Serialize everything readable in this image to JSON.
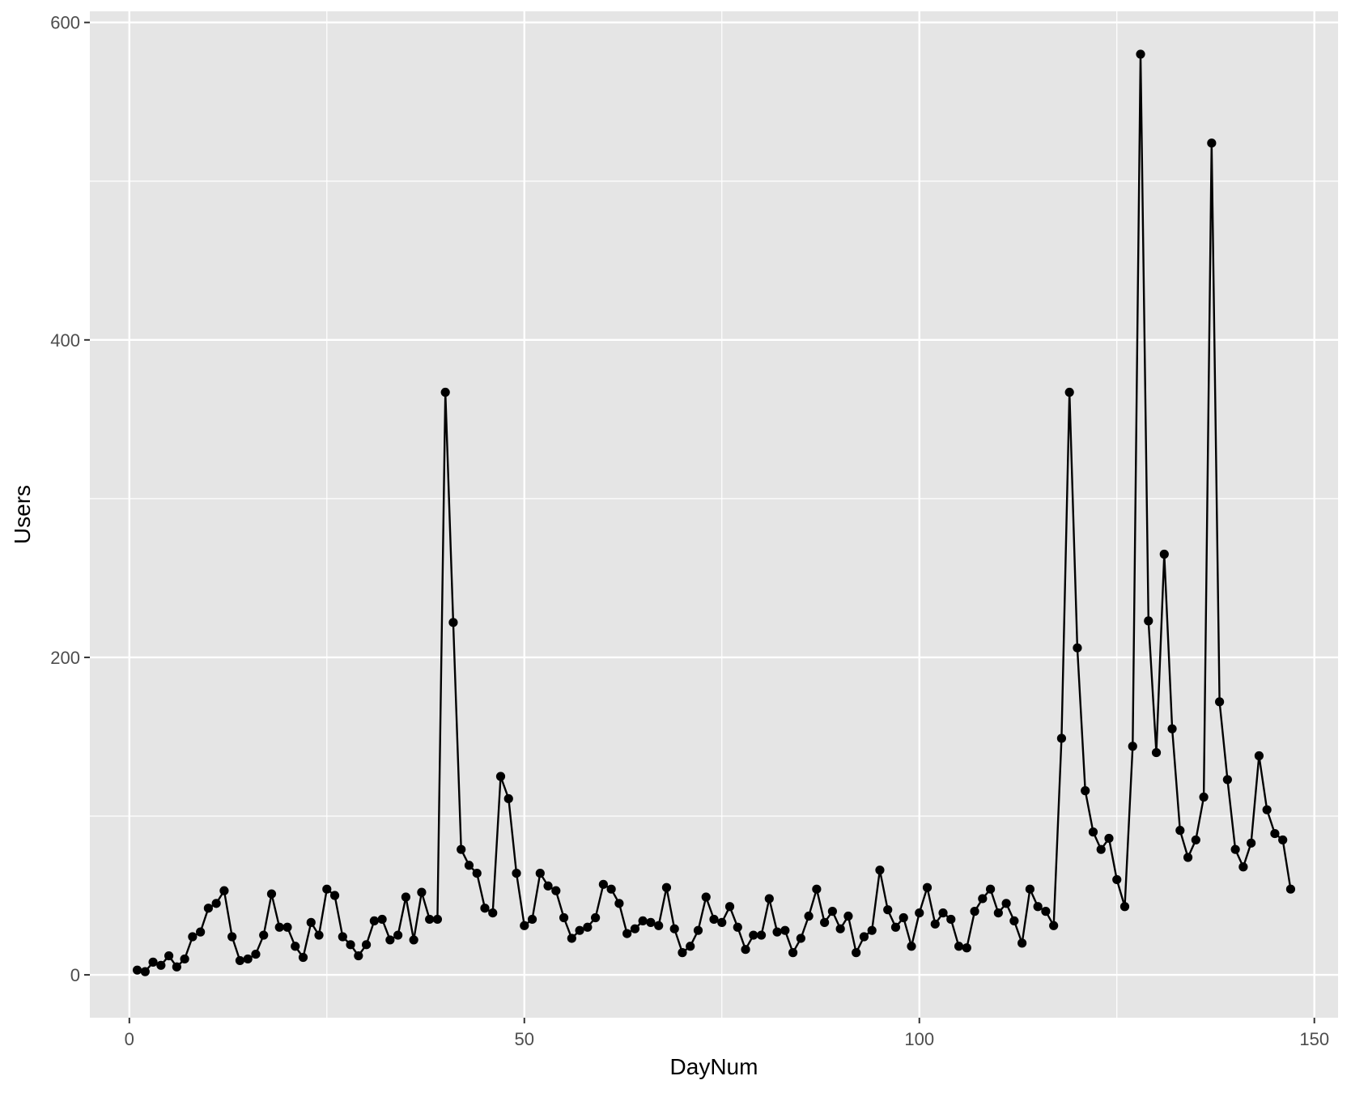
{
  "chart_data": {
    "type": "line",
    "xlabel": "DayNum",
    "ylabel": "Users",
    "xlim": [
      -5,
      153
    ],
    "ylim": [
      -27,
      607
    ],
    "x_ticks": [
      0,
      50,
      100,
      150
    ],
    "x_minor_ticks": [
      25,
      75,
      125
    ],
    "y_ticks": [
      0,
      200,
      400,
      600
    ],
    "y_minor_ticks": [
      100,
      300,
      500
    ],
    "grid": true,
    "legend": "none",
    "colors": {
      "panel": "#e5e5e5",
      "grid": "#ffffff",
      "series": "#000000"
    },
    "series": [
      {
        "x": [
          1,
          2,
          3,
          4,
          5,
          6,
          7,
          8,
          9,
          10,
          11,
          12,
          13,
          14,
          15,
          16,
          17,
          18,
          19,
          20,
          21,
          22,
          23,
          24,
          25,
          26,
          27,
          28,
          29,
          30,
          31,
          32,
          33,
          34,
          35,
          36,
          37,
          38,
          39,
          40,
          41,
          42,
          43,
          44,
          45,
          46,
          47,
          48,
          49,
          50,
          51,
          52,
          53,
          54,
          55,
          56,
          57,
          58,
          59,
          60,
          61,
          62,
          63,
          64,
          65,
          66,
          67,
          68,
          69,
          70,
          71,
          72,
          73,
          74,
          75,
          76,
          77,
          78,
          79,
          80,
          81,
          82,
          83,
          84,
          85,
          86,
          87,
          88,
          89,
          90,
          91,
          92,
          93,
          94,
          95,
          96,
          97,
          98,
          99,
          100,
          101,
          102,
          103,
          104,
          105,
          106,
          107,
          108,
          109,
          110,
          111,
          112,
          113,
          114,
          115,
          116,
          117,
          118,
          119,
          120,
          121,
          122,
          123,
          124,
          125,
          126,
          127,
          128,
          129,
          130,
          131,
          132,
          133,
          134,
          135,
          136,
          137,
          138,
          139,
          140,
          141,
          142,
          143,
          144,
          145,
          146,
          147
        ],
        "values": [
          3,
          2,
          8,
          6,
          12,
          5,
          10,
          24,
          27,
          42,
          45,
          53,
          24,
          9,
          10,
          13,
          25,
          51,
          30,
          30,
          18,
          11,
          33,
          25,
          54,
          50,
          24,
          19,
          12,
          19,
          34,
          35,
          22,
          25,
          49,
          22,
          52,
          35,
          35,
          367,
          222,
          79,
          69,
          64,
          42,
          39,
          125,
          111,
          64,
          31,
          35,
          64,
          56,
          53,
          36,
          23,
          28,
          30,
          36,
          57,
          54,
          45,
          26,
          29,
          34,
          33,
          31,
          55,
          29,
          14,
          18,
          28,
          49,
          35,
          33,
          43,
          30,
          16,
          25,
          25,
          48,
          27,
          28,
          14,
          23,
          37,
          54,
          33,
          40,
          29,
          37,
          14,
          24,
          28,
          66,
          41,
          30,
          36,
          18,
          39,
          55,
          32,
          39,
          35,
          18,
          17,
          40,
          48,
          54,
          39,
          45,
          34,
          20,
          54,
          43,
          40,
          31,
          149,
          367,
          206,
          116,
          90,
          79,
          86,
          60,
          43,
          144,
          580,
          223,
          140,
          265,
          155,
          91,
          74,
          85,
          112,
          524,
          172,
          123,
          79,
          68,
          83,
          138,
          104,
          89,
          85,
          54
        ]
      }
    ]
  }
}
